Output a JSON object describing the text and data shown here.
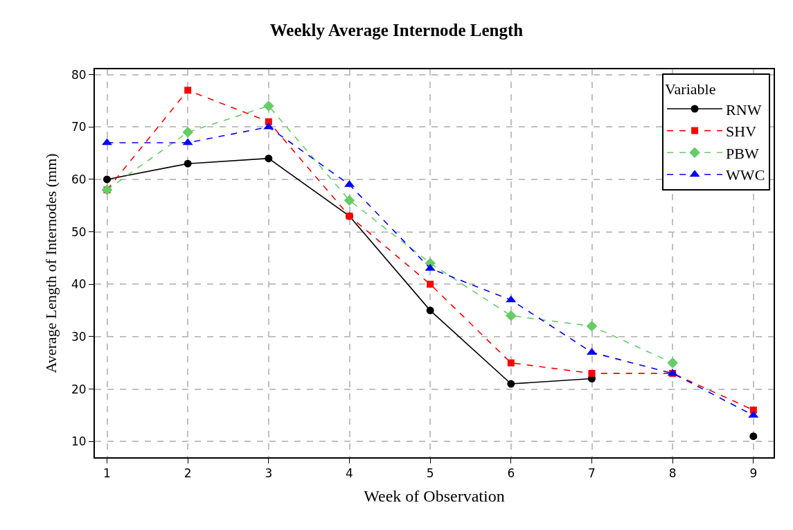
{
  "chart_data": {
    "type": "line",
    "title": "Weekly Average Internode Length",
    "xlabel": "Week of Observation",
    "ylabel": "Average Length of Internodes (mm)",
    "legend_title": "Variable",
    "x": [
      1,
      2,
      3,
      4,
      5,
      6,
      7,
      8,
      9
    ],
    "series": [
      {
        "name": "RNW",
        "color": "#000000",
        "marker": "circle",
        "line_style": "solid",
        "values": [
          60,
          63,
          64,
          53,
          35,
          21,
          22,
          null,
          11
        ]
      },
      {
        "name": "SHV",
        "color": "#ff0000",
        "marker": "square",
        "line_style": "dashed",
        "values": [
          58,
          77,
          71,
          53,
          40,
          25,
          23,
          23,
          16
        ]
      },
      {
        "name": "PBW",
        "color": "#66cc66",
        "marker": "diamond",
        "line_style": "dashed",
        "values": [
          58,
          69,
          74,
          56,
          44,
          34,
          32,
          25,
          null
        ]
      },
      {
        "name": "WWC",
        "color": "#0000ff",
        "marker": "triangle",
        "line_style": "dashed",
        "values": [
          67,
          67,
          70,
          59,
          43,
          37,
          27,
          23,
          15
        ]
      }
    ],
    "xlim": [
      0.85,
      9.25
    ],
    "xticks": [
      1,
      2,
      3,
      4,
      5,
      6,
      7,
      8,
      9
    ],
    "ylim": [
      7,
      81
    ],
    "yticks": [
      10,
      20,
      30,
      40,
      50,
      60,
      70,
      80
    ],
    "grid": true,
    "legend": "top right"
  }
}
